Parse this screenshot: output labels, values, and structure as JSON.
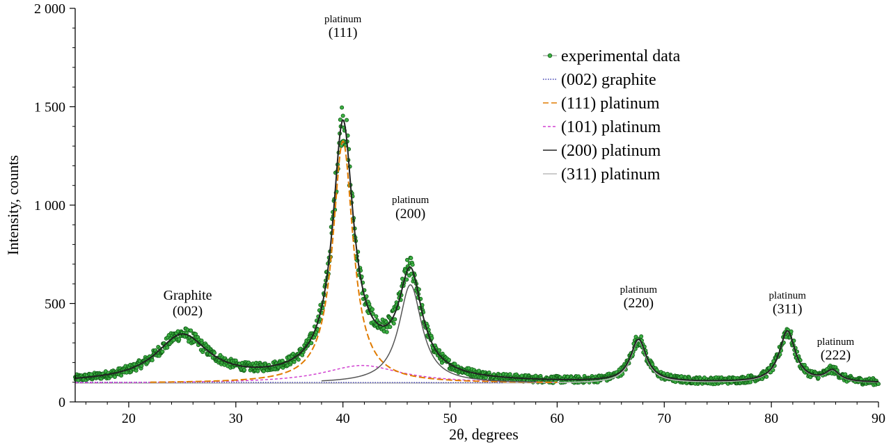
{
  "chart_data": {
    "type": "line",
    "xlabel": "2θ, degrees",
    "ylabel": "Intensity, counts",
    "xlim": [
      15,
      90
    ],
    "ylim": [
      0,
      2000
    ],
    "x_ticks": [
      20,
      30,
      40,
      50,
      60,
      70,
      80,
      90
    ],
    "x_tick_labels": [
      "20",
      "30",
      "40",
      "50",
      "60",
      "70",
      "80",
      "90"
    ],
    "y_ticks": [
      0,
      500,
      1000,
      1500,
      2000
    ],
    "y_tick_labels": [
      "0",
      "500",
      "1 000",
      "1 500",
      "2 000"
    ],
    "legend_position": "top-right",
    "grid": false,
    "background": 95,
    "components": [
      {
        "key": "graphite002",
        "center": 25.0,
        "height": 235,
        "hwhm": 3.0
      },
      {
        "key": "pt111",
        "center": 40.0,
        "height": 1230,
        "hwhm": 1.15
      },
      {
        "key": "pt101",
        "center": 41.8,
        "height": 90,
        "hwhm": 4.5
      },
      {
        "key": "pt200",
        "center": 46.3,
        "height": 500,
        "hwhm": 1.3
      },
      {
        "key": "pt220",
        "center": 67.6,
        "height": 215,
        "hwhm": 0.9
      },
      {
        "key": "pt311",
        "center": 81.5,
        "height": 260,
        "hwhm": 0.9
      },
      {
        "key": "pt222",
        "center": 85.7,
        "height": 55,
        "hwhm": 0.8
      }
    ],
    "series": [
      {
        "name": "experimental data",
        "color": "#1f8a1f",
        "style": "points"
      },
      {
        "name": "(002) graphite",
        "color": "#3b3bb0",
        "style": "dotted"
      },
      {
        "name": "(111) platinum",
        "color": "#e07b00",
        "style": "dashed"
      },
      {
        "name": "(101) platinum",
        "color": "#d040d0",
        "style": "short-dashed"
      },
      {
        "name": "(200) platinum",
        "color": "#222222",
        "style": "solid"
      },
      {
        "name": "(311) platinum",
        "color": "#bbbbbb",
        "style": "solid"
      }
    ],
    "annotations": [
      {
        "id": "graphite002",
        "line1": "Graphite",
        "line2": "(002)",
        "x": 25.5,
        "y1": 520,
        "y2": 440,
        "small": false
      },
      {
        "id": "pt111",
        "line1": "platinum",
        "line2": "(111)",
        "x": 40.0,
        "y1": 1930,
        "y2": 1855,
        "small": true
      },
      {
        "id": "pt200",
        "line1": "platinum",
        "line2": "(200)",
        "x": 46.3,
        "y1": 1010,
        "y2": 935,
        "small": true
      },
      {
        "id": "pt220",
        "line1": "platinum",
        "line2": "(220)",
        "x": 67.6,
        "y1": 555,
        "y2": 480,
        "small": true
      },
      {
        "id": "pt311",
        "line1": "platinum",
        "line2": "(311)",
        "x": 81.5,
        "y1": 525,
        "y2": 450,
        "small": true
      },
      {
        "id": "pt222",
        "line1": "platinum",
        "line2": "(222)",
        "x": 86.0,
        "y1": 290,
        "y2": 215,
        "small": true
      }
    ]
  }
}
